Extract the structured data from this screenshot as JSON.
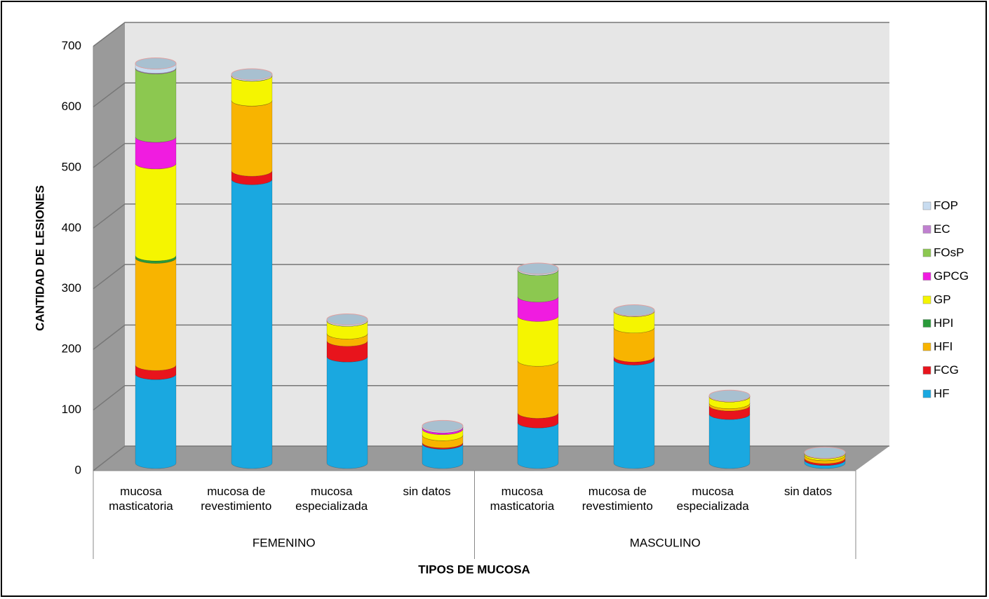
{
  "chart_data": {
    "type": "bar",
    "stacked": true,
    "ylabel": "CANTIDAD DE LESIONES",
    "xlabel": "TIPOS DE MUCOSA",
    "categories": [
      "mucosa masticatoria",
      "mucosa de revestimiento",
      "mucosa especializada",
      "sin datos",
      "mucosa masticatoria",
      "mucosa de revestimiento",
      "mucosa especializada",
      "sin datos"
    ],
    "groups": [
      "FEMENINO",
      "MASCULINO"
    ],
    "ylim": [
      0,
      700
    ],
    "yticks": [
      0,
      100,
      200,
      300,
      400,
      500,
      600,
      700
    ],
    "grid": true,
    "legend": "right",
    "series": [
      {
        "name": "HF",
        "color": "#1aa8e0",
        "values": [
          147,
          469,
          176,
          32,
          67,
          171,
          81,
          5
        ]
      },
      {
        "name": "FCG",
        "color": "#e8141c",
        "values": [
          15,
          14,
          26,
          2,
          16,
          5,
          14,
          3
        ]
      },
      {
        "name": "HFI",
        "color": "#f8b400",
        "values": [
          177,
          116,
          12,
          12,
          86,
          48,
          4,
          5
        ]
      },
      {
        "name": "HPI",
        "color": "#2a9a3a",
        "values": [
          4,
          0,
          0,
          0,
          0,
          0,
          0,
          0
        ]
      },
      {
        "name": "GP",
        "color": "#f5f500",
        "values": [
          152,
          41,
          21,
          10,
          74,
          27,
          11,
          3
        ]
      },
      {
        "name": "GPCG",
        "color": "#f01ce0",
        "values": [
          44,
          0,
          0,
          3,
          32,
          0,
          0,
          0
        ]
      },
      {
        "name": "FOsP",
        "color": "#8cc850",
        "values": [
          113,
          0,
          0,
          0,
          44,
          0,
          0,
          0
        ]
      },
      {
        "name": "EC",
        "color": "#c080d0",
        "values": [
          1,
          0,
          0,
          0,
          0,
          0,
          0,
          0
        ]
      },
      {
        "name": "FOP",
        "color": "#c8dcf0",
        "values": [
          7,
          2,
          2,
          2,
          2,
          1,
          1,
          1
        ]
      }
    ]
  }
}
